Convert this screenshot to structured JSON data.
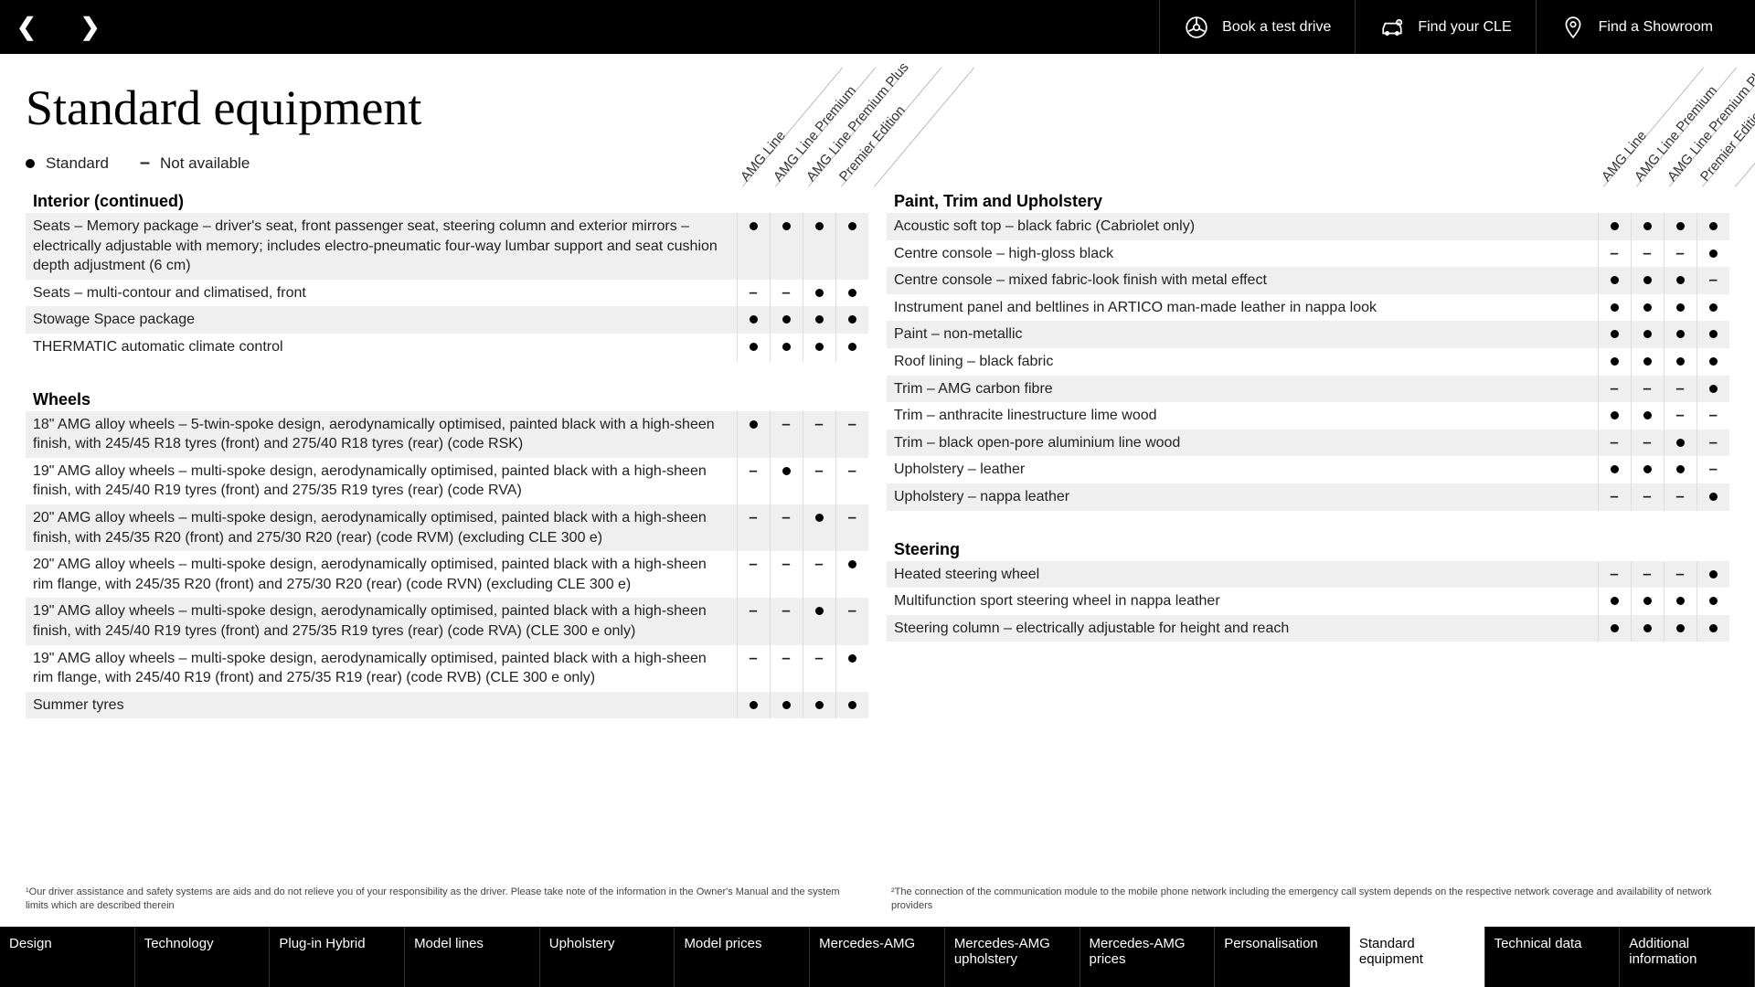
{
  "topbar": {
    "actions": [
      {
        "label": "Book a test drive",
        "icon": "wheel"
      },
      {
        "label": "Find your CLE",
        "icon": "car"
      },
      {
        "label": "Find a Showroom",
        "icon": "pin"
      }
    ]
  },
  "title": "Standard equipment",
  "legend": {
    "standard": "Standard",
    "na": "Not available"
  },
  "trims": [
    "AMG Line",
    "AMG Line Premium",
    "AMG Line Premium Plus",
    "Premier Edition"
  ],
  "sections_left": [
    {
      "title": "Interior (continued)",
      "rows": [
        {
          "label": "Seats – Memory package – driver's seat, front passenger seat, steering column and exterior mirrors – electrically adjustable with memory; includes electro-pneumatic four-way lumbar support and seat cushion depth adjustment (6 cm)",
          "v": [
            "s",
            "s",
            "s",
            "s"
          ]
        },
        {
          "label": "Seats – multi-contour and climatised, front",
          "v": [
            "n",
            "n",
            "s",
            "s"
          ]
        },
        {
          "label": "Stowage Space package",
          "v": [
            "s",
            "s",
            "s",
            "s"
          ]
        },
        {
          "label": "THERMATIC automatic climate control",
          "v": [
            "s",
            "s",
            "s",
            "s"
          ]
        }
      ]
    },
    {
      "title": "Wheels",
      "rows": [
        {
          "label": "18\" AMG alloy wheels – 5-twin-spoke design, aerodynamically optimised, painted black with a high-sheen finish, with 245/45 R18 tyres (front) and 275/40 R18 tyres (rear) (code RSK)",
          "v": [
            "s",
            "n",
            "n",
            "n"
          ]
        },
        {
          "label": "19\" AMG alloy wheels – multi-spoke design, aerodynamically optimised, painted black with a high-sheen finish, with 245/40 R19 tyres (front) and 275/35 R19 tyres (rear) (code RVA)",
          "v": [
            "n",
            "s",
            "n",
            "n"
          ]
        },
        {
          "label": "20\" AMG alloy wheels – multi-spoke design, aerodynamically optimised, painted black with a high-sheen finish, with 245/35 R20 (front) and 275/30 R20 (rear) (code RVM) (excluding CLE 300 e)",
          "v": [
            "n",
            "n",
            "s",
            "n"
          ]
        },
        {
          "label": "20\" AMG alloy wheels – multi-spoke design, aerodynamically optimised, painted black with a high-sheen rim flange, with 245/35 R20 (front) and 275/30 R20 (rear) (code RVN) (excluding CLE 300 e)",
          "v": [
            "n",
            "n",
            "n",
            "s"
          ]
        },
        {
          "label": "19\" AMG alloy wheels – multi-spoke design, aerodynamically optimised, painted black with a high-sheen finish, with 245/40 R19 tyres (front) and 275/35 R19 tyres (rear) (code RVA) (CLE 300 e only)",
          "v": [
            "n",
            "n",
            "s",
            "n"
          ]
        },
        {
          "label": "19\" AMG alloy wheels – multi-spoke design, aerodynamically optimised, painted black with a high-sheen rim flange, with 245/40 R19 (front) and 275/35 R19 (rear) (code RVB) (CLE 300 e only)",
          "v": [
            "n",
            "n",
            "n",
            "s"
          ]
        },
        {
          "label": "Summer tyres",
          "v": [
            "s",
            "s",
            "s",
            "s"
          ]
        }
      ]
    }
  ],
  "sections_right": [
    {
      "title": "Paint, Trim and Upholstery",
      "rows": [
        {
          "label": "Acoustic soft top – black fabric (Cabriolet only)",
          "v": [
            "s",
            "s",
            "s",
            "s"
          ]
        },
        {
          "label": "Centre console – high-gloss black",
          "v": [
            "n",
            "n",
            "n",
            "s"
          ]
        },
        {
          "label": "Centre console – mixed fabric-look finish with metal effect",
          "v": [
            "s",
            "s",
            "s",
            "n"
          ]
        },
        {
          "label": "Instrument panel and beltlines in ARTICO man-made leather in nappa look",
          "v": [
            "s",
            "s",
            "s",
            "s"
          ]
        },
        {
          "label": "Paint – non-metallic",
          "v": [
            "s",
            "s",
            "s",
            "s"
          ]
        },
        {
          "label": "Roof lining – black fabric",
          "v": [
            "s",
            "s",
            "s",
            "s"
          ]
        },
        {
          "label": "Trim – AMG carbon fibre",
          "v": [
            "n",
            "n",
            "n",
            "s"
          ]
        },
        {
          "label": "Trim – anthracite linestructure lime wood",
          "v": [
            "s",
            "s",
            "n",
            "n"
          ]
        },
        {
          "label": "Trim – black open-pore aluminium line wood",
          "v": [
            "n",
            "n",
            "s",
            "n"
          ]
        },
        {
          "label": "Upholstery – leather",
          "v": [
            "s",
            "s",
            "s",
            "n"
          ]
        },
        {
          "label": "Upholstery – nappa leather",
          "v": [
            "n",
            "n",
            "n",
            "s"
          ]
        }
      ]
    },
    {
      "title": "Steering",
      "rows": [
        {
          "label": "Heated steering wheel",
          "v": [
            "n",
            "n",
            "n",
            "s"
          ]
        },
        {
          "label": "Multifunction sport steering wheel in nappa leather",
          "v": [
            "s",
            "s",
            "s",
            "s"
          ]
        },
        {
          "label": "Steering column – electrically adjustable for height and reach",
          "v": [
            "s",
            "s",
            "s",
            "s"
          ]
        }
      ]
    }
  ],
  "footnotes": [
    "¹Our driver assistance and safety systems are aids and do not relieve you of your responsibility as the driver. Please take note of the information in the Owner's Manual and the system limits which are described therein",
    "²The connection of the communication module to the mobile phone network including the emergency call system depends on the respective network coverage and availability of network providers"
  ],
  "bottomnav": [
    "Design",
    "Technology",
    "Plug-in Hybrid",
    "Model lines",
    "Upholstery",
    "Model prices",
    "Mercedes-AMG",
    "Mercedes-AMG upholstery",
    "Mercedes-AMG prices",
    "Personalisation",
    "Standard equipment",
    "Technical data",
    "Additional information"
  ],
  "bottomnav_active": 10,
  "colors": {
    "bg": "#ffffff",
    "row_alt": "#efefef",
    "text": "#222222",
    "topbar": "#000000"
  }
}
